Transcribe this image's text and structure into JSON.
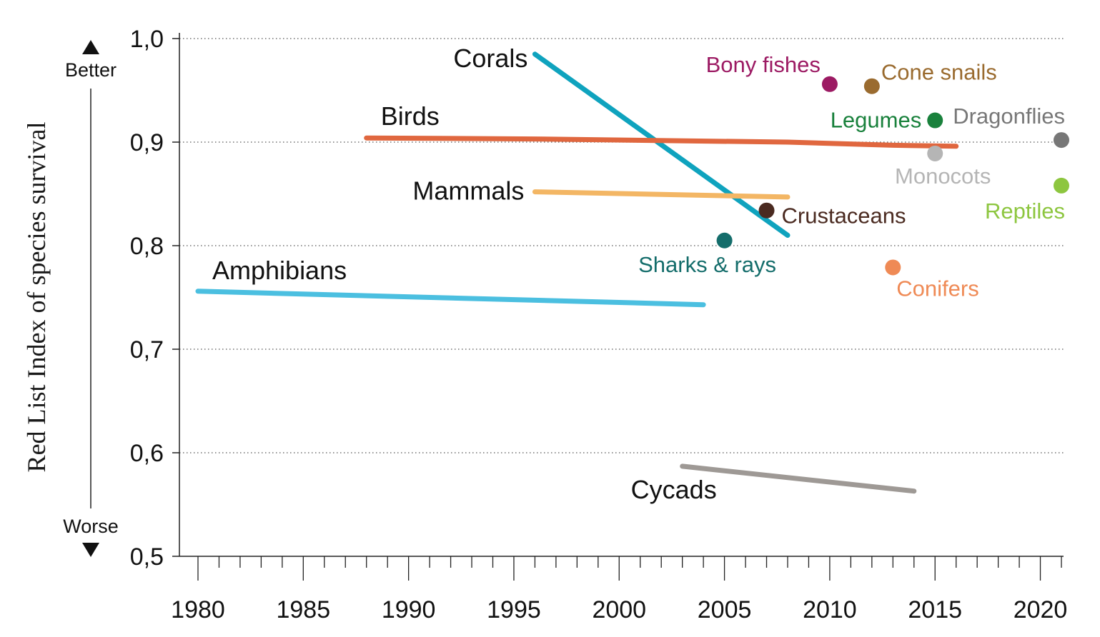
{
  "chart_data": {
    "type": "line",
    "ylabel": "Red List Index of species survival",
    "ylabel_top": "Better",
    "ylabel_bottom": "Worse",
    "xlim": [
      1979,
      2021
    ],
    "ylim": [
      0.5,
      1.0
    ],
    "x_ticks": [
      1980,
      1985,
      1990,
      1995,
      2000,
      2005,
      2010,
      2015,
      2020
    ],
    "x_tick_labels": [
      "1980",
      "1985",
      "1990",
      "1995",
      "2000",
      "2005",
      "2010",
      "2015",
      "2020"
    ],
    "y_ticks": [
      0.5,
      0.6,
      0.7,
      0.8,
      0.9,
      1.0
    ],
    "y_tick_labels": [
      "0,5",
      "0,6",
      "0,7",
      "0,8",
      "0,9",
      "1,0"
    ],
    "grid": "horizontal dotted",
    "series": [
      {
        "name": "Corals",
        "color": "#0fa3be",
        "points": [
          [
            1996,
            0.985
          ],
          [
            2008,
            0.81
          ]
        ]
      },
      {
        "name": "Birds",
        "color": "#e0673f",
        "points": [
          [
            1988,
            0.904
          ],
          [
            1996,
            0.903
          ],
          [
            2008,
            0.9
          ],
          [
            2013,
            0.897
          ],
          [
            2016,
            0.896
          ]
        ]
      },
      {
        "name": "Mammals",
        "color": "#f3b664",
        "points": [
          [
            1996,
            0.852
          ],
          [
            2008,
            0.847
          ]
        ]
      },
      {
        "name": "Amphibians",
        "color": "#4bbfe0",
        "points": [
          [
            1980,
            0.756
          ],
          [
            2004,
            0.743
          ]
        ]
      },
      {
        "name": "Cycads",
        "color": "#9e9995",
        "points": [
          [
            2003,
            0.587
          ],
          [
            2014,
            0.563
          ]
        ]
      }
    ],
    "points": [
      {
        "name": "Bony fishes",
        "color": "#9c1a63",
        "x": 2010,
        "y": 0.956
      },
      {
        "name": "Cone snails",
        "color": "#9a6b2f",
        "x": 2012,
        "y": 0.954
      },
      {
        "name": "Legumes",
        "color": "#19813c",
        "x": 2015,
        "y": 0.921
      },
      {
        "name": "Dragonflies",
        "color": "#777777",
        "x": 2021,
        "y": 0.902
      },
      {
        "name": "Monocots",
        "color": "#b5b5b5",
        "x": 2015,
        "y": 0.889
      },
      {
        "name": "Reptiles",
        "color": "#8dc63f",
        "x": 2021,
        "y": 0.858
      },
      {
        "name": "Crustaceans",
        "color": "#4a2a20",
        "x": 2007,
        "y": 0.834
      },
      {
        "name": "Sharks & rays",
        "color": "#146d6b",
        "x": 2005,
        "y": 0.805
      },
      {
        "name": "Conifers",
        "color": "#ef8a55",
        "x": 2013,
        "y": 0.779
      }
    ]
  }
}
